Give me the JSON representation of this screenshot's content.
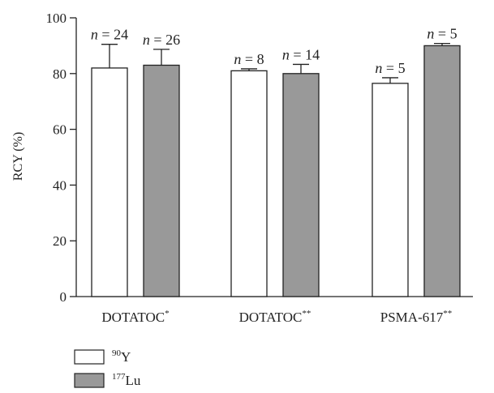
{
  "chart_data": {
    "type": "bar",
    "ylabel": "RCY (%)",
    "ylim": [
      0,
      100
    ],
    "yticks": [
      0,
      20,
      40,
      60,
      80,
      100
    ],
    "categories": [
      {
        "name": "DOTATOC",
        "sup": "*"
      },
      {
        "name": "DOTATOC",
        "sup": "**"
      },
      {
        "name": "PSMA-617",
        "sup": "**"
      }
    ],
    "series": [
      {
        "name": "Y",
        "sup": "90",
        "color": "#ffffff",
        "values": [
          82,
          81,
          76.5
        ],
        "errors": [
          8.5,
          0.7,
          2
        ],
        "n_labels": [
          "n = 24",
          "n = 8",
          "n = 5"
        ]
      },
      {
        "name": "Lu",
        "sup": "177",
        "color": "#999999",
        "values": [
          83,
          80,
          90
        ],
        "errors": [
          5.7,
          3.3,
          0.8
        ],
        "n_labels": [
          "n = 26",
          "n = 14",
          "n = 5"
        ]
      }
    ],
    "legend_position": "bottom-left"
  }
}
